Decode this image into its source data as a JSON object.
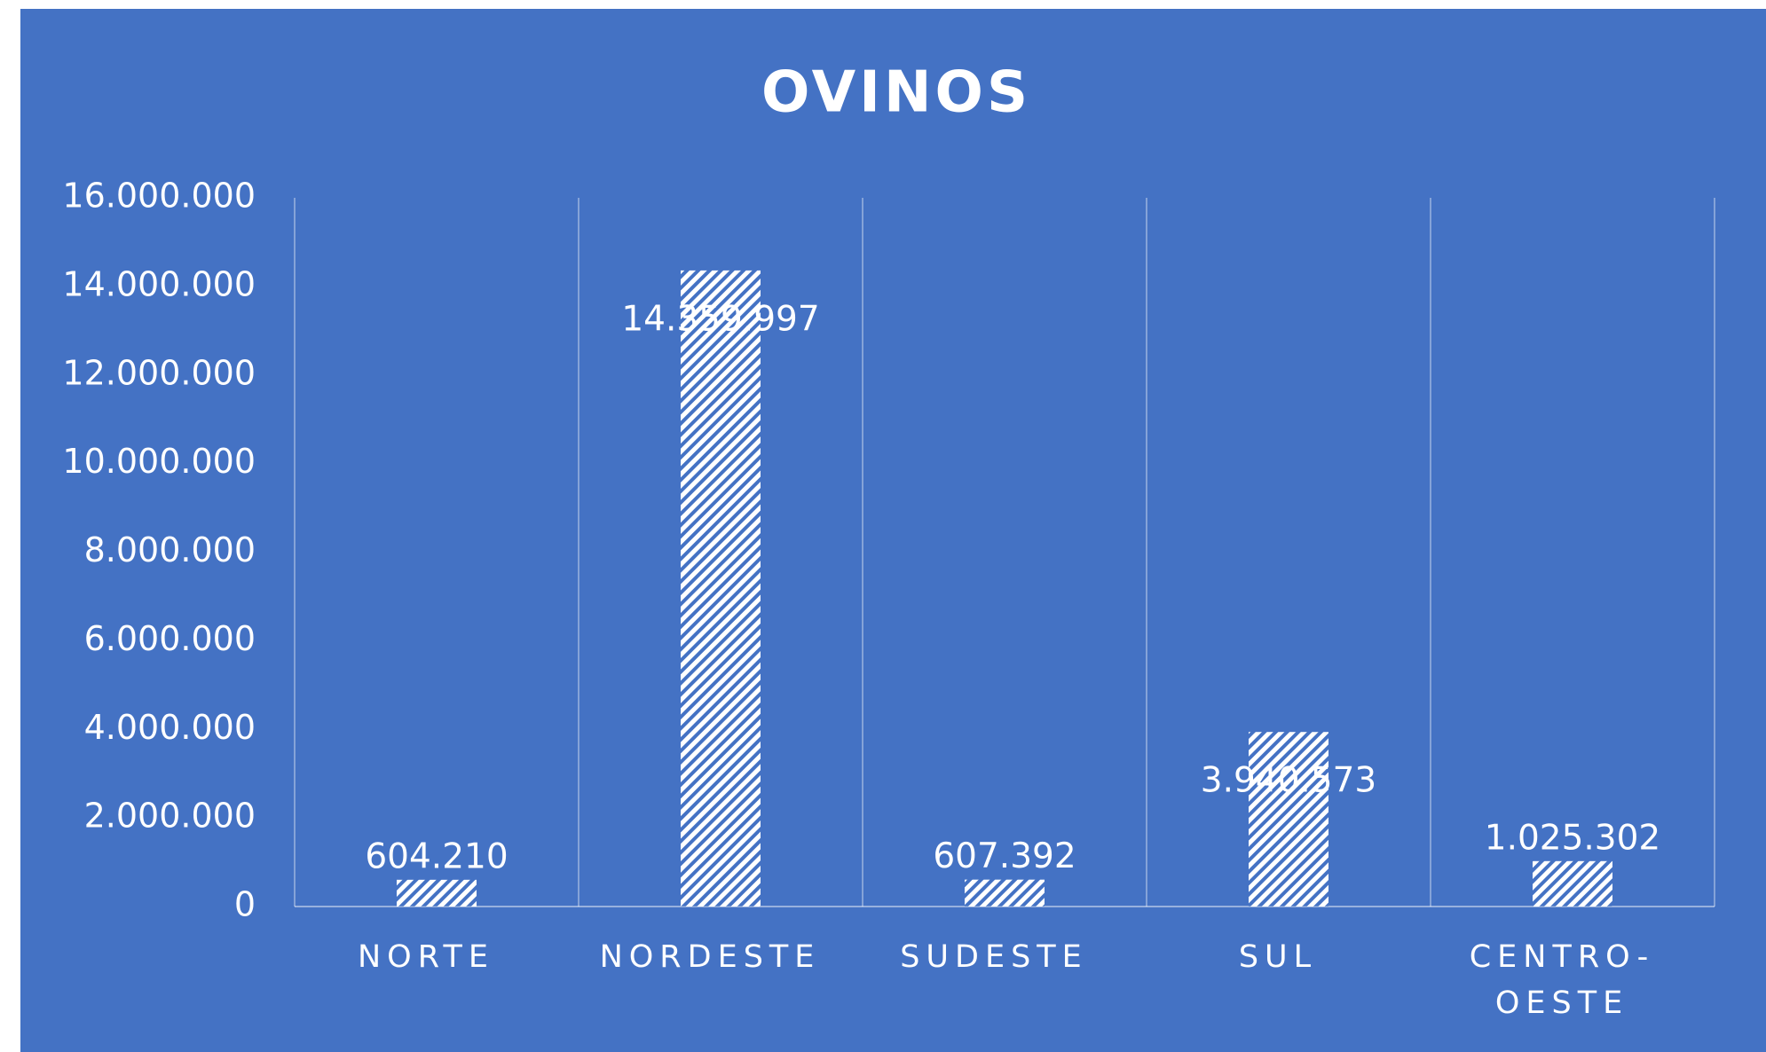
{
  "chart_data": {
    "type": "bar",
    "title": "OVINOS",
    "categories": [
      "NORTE",
      "NORDESTE",
      "SUDESTE",
      "SUL",
      "CENTRO-OESTE"
    ],
    "values": [
      604210,
      14359997,
      607392,
      3940573,
      1025302
    ],
    "value_labels": [
      "604.210",
      "14.359.997",
      "607.392",
      "3.940.573",
      "1.025.302"
    ],
    "color": "#ffffff",
    "background": "#4472c4",
    "ylim": [
      0,
      16000000
    ],
    "yticks": [
      0,
      {
        "value": 2000000,
        "label": "2.000.000"
      },
      {
        "value": 4000000,
        "label": "4.000.000"
      },
      {
        "value": 6000000,
        "label": "6.000.000"
      },
      {
        "value": 8000000,
        "label": "8.000.000"
      },
      {
        "value": 10000000,
        "label": "10.000.000"
      },
      {
        "value": 12000000,
        "label": "12.000.000"
      },
      {
        "value": 14000000,
        "label": "14.000.000"
      },
      {
        "value": 16000000,
        "label": "16.000.000"
      }
    ],
    "grid": false
  }
}
